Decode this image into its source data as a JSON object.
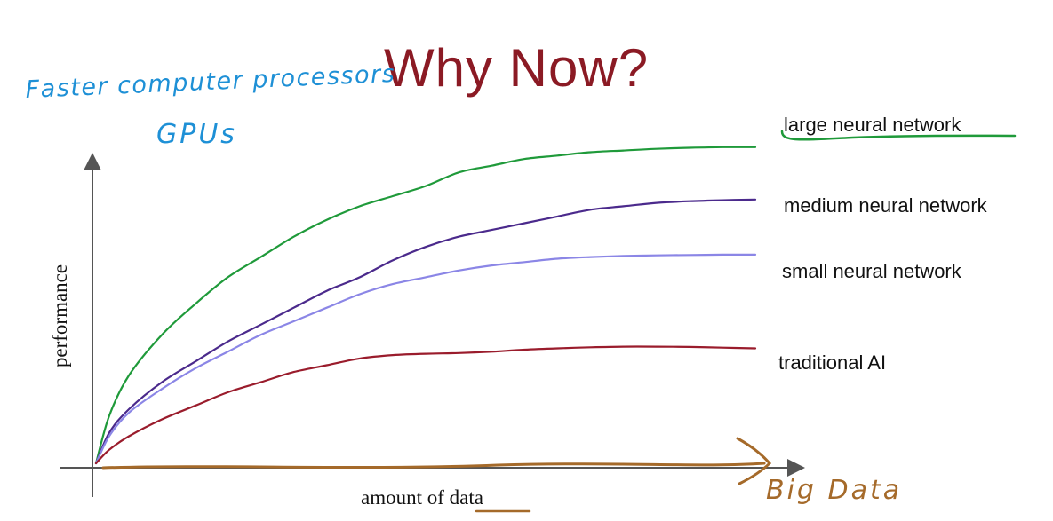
{
  "chart_data": {
    "type": "line",
    "title": "Why Now?",
    "xlabel_prefix": "amount of ",
    "xlabel_emphasis": "data",
    "ylabel": "performance",
    "xlim": [
      0,
      100
    ],
    "ylim": [
      0,
      100
    ],
    "grid": false,
    "legend": "right, inline labels",
    "x": [
      0,
      2,
      5,
      10,
      15,
      20,
      25,
      30,
      35,
      40,
      45,
      50,
      55,
      60,
      65,
      70,
      75,
      80,
      85,
      90,
      95,
      100
    ],
    "series": [
      {
        "name": "large neural network",
        "color": "#1f9a3a",
        "values": [
          0,
          14,
          26,
          38,
          47,
          55,
          61,
          67,
          72,
          76,
          79,
          82,
          86,
          88,
          90,
          91,
          92,
          92.5,
          93,
          93.3,
          93.5,
          93.5
        ]
      },
      {
        "name": "medium neural network",
        "color": "#4b2a8c",
        "values": [
          0,
          9,
          16,
          24,
          30,
          36,
          41,
          46,
          51,
          55,
          60,
          64,
          67,
          69,
          71,
          73,
          75,
          76,
          77,
          77.5,
          77.8,
          78
        ]
      },
      {
        "name": "small neural network",
        "color": "#8b86e6",
        "values": [
          0,
          8,
          15,
          22,
          28,
          33,
          38,
          42,
          46,
          50,
          53,
          55,
          57,
          58.5,
          59.5,
          60.5,
          61,
          61.3,
          61.5,
          61.6,
          61.7,
          61.7
        ]
      },
      {
        "name": "traditional AI",
        "color": "#9a1c2c",
        "values": [
          0,
          4,
          8,
          13,
          17,
          21,
          24,
          27,
          29,
          31,
          32,
          32.4,
          32.6,
          33,
          33.6,
          34,
          34.3,
          34.5,
          34.5,
          34.4,
          34.2,
          34
        ]
      }
    ],
    "annotations": [
      {
        "text": "Faster computer processors",
        "color": "#1e90d6"
      },
      {
        "text": "GPUs",
        "color": "#1e90d6"
      },
      {
        "text": "Big Data",
        "color": "#a56a2a"
      }
    ]
  },
  "colors": {
    "title": "#8b1a24",
    "axis": "#555555",
    "highlight_blue": "#1e90d6",
    "highlight_brown": "#a56a2a",
    "highlight_green": "#1f9a3a"
  }
}
